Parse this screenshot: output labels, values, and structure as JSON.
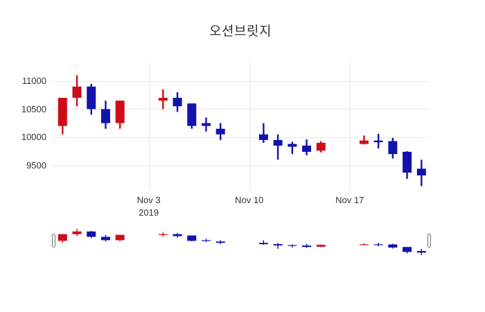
{
  "chart_data": {
    "type": "candlestick",
    "title": "오션브릿지",
    "increasing_color": "#cd0d18",
    "decreasing_color": "#1212ad",
    "grid": true,
    "rangeslider": true,
    "y_range_main": [
      9055,
      11330
    ],
    "candles": [
      {
        "date": "2019-10-28",
        "open": 10200,
        "high": 10700,
        "low": 10050,
        "close": 10700
      },
      {
        "date": "2019-10-29",
        "open": 10700,
        "high": 11100,
        "low": 10550,
        "close": 10900
      },
      {
        "date": "2019-10-30",
        "open": 10900,
        "high": 10950,
        "low": 10400,
        "close": 10500
      },
      {
        "date": "2019-10-31",
        "open": 10500,
        "high": 10650,
        "low": 10150,
        "close": 10250
      },
      {
        "date": "2019-11-01",
        "open": 10250,
        "high": 10650,
        "low": 10150,
        "close": 10650
      },
      {
        "date": "2019-11-04",
        "open": 10650,
        "high": 10850,
        "low": 10500,
        "close": 10700
      },
      {
        "date": "2019-11-05",
        "open": 10700,
        "high": 10800,
        "low": 10450,
        "close": 10550
      },
      {
        "date": "2019-11-06",
        "open": 10600,
        "high": 10600,
        "low": 10150,
        "close": 10200
      },
      {
        "date": "2019-11-07",
        "open": 10250,
        "high": 10350,
        "low": 10100,
        "close": 10200
      },
      {
        "date": "2019-11-08",
        "open": 10150,
        "high": 10250,
        "low": 9950,
        "close": 10050
      },
      {
        "date": "2019-11-11",
        "open": 10050,
        "high": 10250,
        "low": 9900,
        "close": 9950
      },
      {
        "date": "2019-11-12",
        "open": 9950,
        "high": 10050,
        "low": 9600,
        "close": 9850
      },
      {
        "date": "2019-11-13",
        "open": 9880,
        "high": 9920,
        "low": 9700,
        "close": 9830
      },
      {
        "date": "2019-11-14",
        "open": 9850,
        "high": 9960,
        "low": 9680,
        "close": 9740
      },
      {
        "date": "2019-11-15",
        "open": 9760,
        "high": 9930,
        "low": 9730,
        "close": 9900
      },
      {
        "date": "2019-11-18",
        "open": 9880,
        "high": 10030,
        "low": 9870,
        "close": 9940
      },
      {
        "date": "2019-11-19",
        "open": 9940,
        "high": 10060,
        "low": 9800,
        "close": 9910
      },
      {
        "date": "2019-11-20",
        "open": 9930,
        "high": 9990,
        "low": 9620,
        "close": 9700
      },
      {
        "date": "2019-11-21",
        "open": 9740,
        "high": 9750,
        "low": 9260,
        "close": 9370
      },
      {
        "date": "2019-11-22",
        "open": 9440,
        "high": 9600,
        "low": 9130,
        "close": 9320
      }
    ]
  },
  "axes": {
    "y": {
      "ticks": [
        {
          "label": "11000",
          "value": 11000
        },
        {
          "label": "10500",
          "value": 10500
        },
        {
          "label": "10000",
          "value": 10000
        },
        {
          "label": "9500",
          "value": 9500
        }
      ]
    },
    "x": {
      "ticks": [
        {
          "label": "Nov 3",
          "sub": "2019",
          "date": "2019-11-03"
        },
        {
          "label": "Nov 10",
          "sub": "",
          "date": "2019-11-10"
        },
        {
          "label": "Nov 17",
          "sub": "",
          "date": "2019-11-17"
        }
      ]
    }
  },
  "colors": {
    "grid": "#e8e8e8",
    "text": "#333333",
    "handle_border": "#6f6f6f",
    "background": "#ffffff"
  }
}
